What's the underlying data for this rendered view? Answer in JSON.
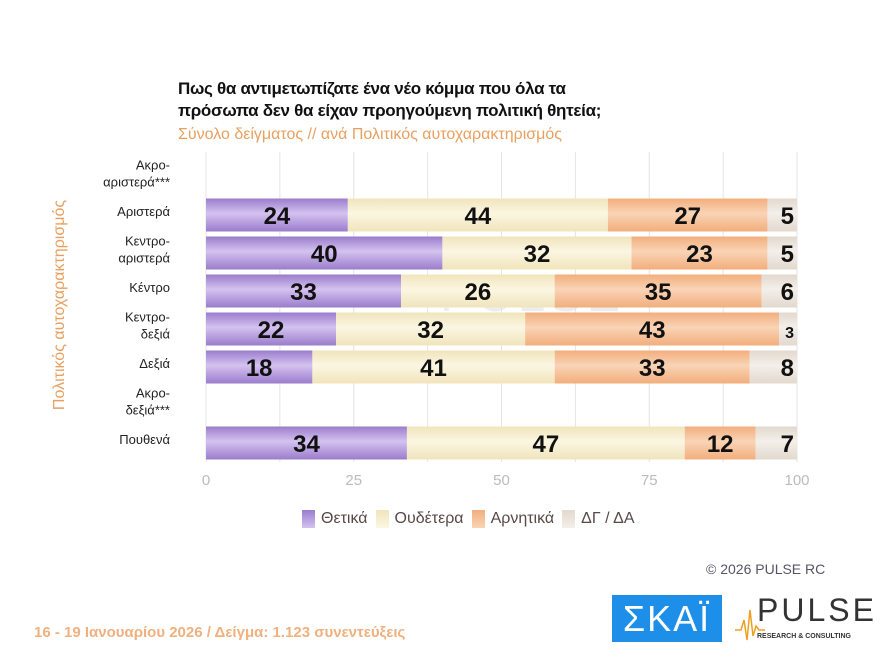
{
  "chart_data": {
    "type": "bar",
    "orientation": "horizontal",
    "stacked": true,
    "title": "Πως θα αντιμετωπίζατε ένα νέο κόμμα που όλα τα πρόσωπα δεν θα είχαν προηγούμενη πολιτική θητεία;",
    "title_lines": [
      "Πως θα αντιμετωπίζατε ένα νέο κόμμα που όλα τα",
      "πρόσωπα δεν θα είχαν προηγούμενη πολιτική θητεία;"
    ],
    "subtitle": "Σύνολο δείγματος // ανά Πολιτικός αυτοχαρακτηρισμός",
    "ylabel": "Πολιτικός αυτοχαρακτηρισμός",
    "xlabel": "",
    "xlim": [
      0,
      100
    ],
    "xticks": [
      "0",
      "25",
      "50",
      "75",
      "100"
    ],
    "grid": true,
    "legend_position": "bottom",
    "categories": [
      [
        "Ακρο-",
        "αριστερά***"
      ],
      [
        "Αριστερά"
      ],
      [
        "Κεντρο-",
        "αριστερά"
      ],
      [
        "Κέντρο"
      ],
      [
        "Κεντρο-",
        "δεξιά"
      ],
      [
        "Δεξιά"
      ],
      [
        "Ακρο-",
        "δεξιά***"
      ],
      [
        "Πουθενά"
      ]
    ],
    "series": [
      {
        "name": "Θετικά",
        "color": "#a88ad8",
        "values": [
          null,
          24,
          40,
          33,
          22,
          18,
          null,
          34
        ]
      },
      {
        "name": "Ουδέτερα",
        "color": "#f6edcb",
        "values": [
          null,
          44,
          32,
          26,
          32,
          41,
          null,
          47
        ]
      },
      {
        "name": "Αρνητικά",
        "color": "#f5bc90",
        "values": [
          null,
          27,
          23,
          35,
          43,
          33,
          null,
          12
        ]
      },
      {
        "name": "ΔΓ / ΔΑ",
        "color": "#ebe4dc",
        "values": [
          null,
          5,
          5,
          6,
          3,
          8,
          null,
          7
        ]
      }
    ]
  },
  "footer": {
    "copyright": "© 2026 PULSE RC",
    "fieldwork": "16 - 19 Ιανουαρίου 2026  /  Δείγμα:  1.123 συνεντεύξεις"
  },
  "logos": {
    "skai": "ΣΚΑΪ",
    "pulse": "PULSE",
    "pulse_sub": "RESEARCH & CONSULTING"
  }
}
